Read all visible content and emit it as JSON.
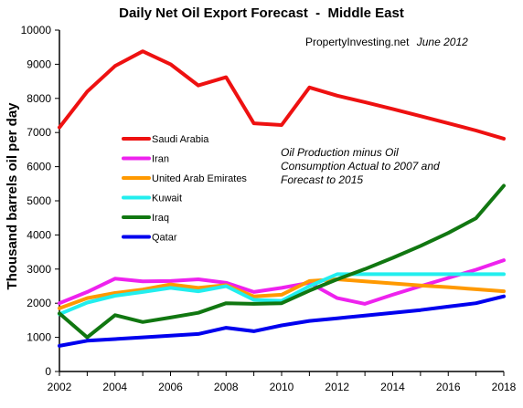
{
  "chart_data": {
    "type": "line",
    "title": "Daily Net Oil Export Forecast  -  Middle East",
    "source": "PropertyInvesting.net",
    "source_date": "June 2012",
    "ylabel": "Thousand barrels oil per day",
    "xlabel": "",
    "note_lines": [
      "Oil Production minus Oil",
      "Consumption Actual to 2007 and",
      "Forecast to 2015"
    ],
    "xlim": [
      2002,
      2018
    ],
    "ylim": [
      0,
      10000
    ],
    "x_ticks": [
      2002,
      2004,
      2006,
      2008,
      2010,
      2012,
      2014,
      2016,
      2018
    ],
    "y_ticks": [
      0,
      1000,
      2000,
      3000,
      4000,
      5000,
      6000,
      7000,
      8000,
      9000,
      10000
    ],
    "grid": false,
    "legend_position": "left, mid-plot",
    "x": [
      2002,
      2003,
      2004,
      2005,
      2006,
      2007,
      2008,
      2009,
      2010,
      2011,
      2012,
      2013,
      2014,
      2015,
      2016,
      2017,
      2018
    ],
    "series": [
      {
        "name": "Saudi Arabia",
        "color": "#ee1111",
        "values": [
          7150,
          8200,
          8950,
          9380,
          9000,
          8380,
          8620,
          7270,
          7220,
          8320,
          8080,
          7890,
          7690,
          7480,
          7270,
          7060,
          6820
        ]
      },
      {
        "name": "Iran",
        "color": "#ee22ee",
        "values": [
          2000,
          2330,
          2720,
          2640,
          2650,
          2700,
          2600,
          2330,
          2450,
          2600,
          2150,
          1980,
          2250,
          2500,
          2740,
          2980,
          3260
        ]
      },
      {
        "name": "United Arab Emirates",
        "color": "#ff9900",
        "values": [
          1850,
          2150,
          2300,
          2400,
          2550,
          2450,
          2530,
          2200,
          2250,
          2650,
          2700,
          2640,
          2580,
          2520,
          2470,
          2410,
          2350
        ]
      },
      {
        "name": "Kuwait",
        "color": "#22eeee",
        "values": [
          1680,
          2020,
          2220,
          2330,
          2450,
          2350,
          2500,
          2100,
          2070,
          2500,
          2850,
          2850,
          2850,
          2850,
          2850,
          2850,
          2850
        ]
      },
      {
        "name": "Iraq",
        "color": "#117711",
        "values": [
          1700,
          1000,
          1650,
          1450,
          1580,
          1720,
          2000,
          1980,
          2000,
          2370,
          2700,
          3000,
          3330,
          3680,
          4060,
          4490,
          5440
        ]
      },
      {
        "name": "Qatar",
        "color": "#0000ee",
        "values": [
          750,
          900,
          950,
          1000,
          1050,
          1100,
          1280,
          1180,
          1350,
          1480,
          1560,
          1640,
          1720,
          1800,
          1900,
          2000,
          2200
        ]
      }
    ]
  }
}
